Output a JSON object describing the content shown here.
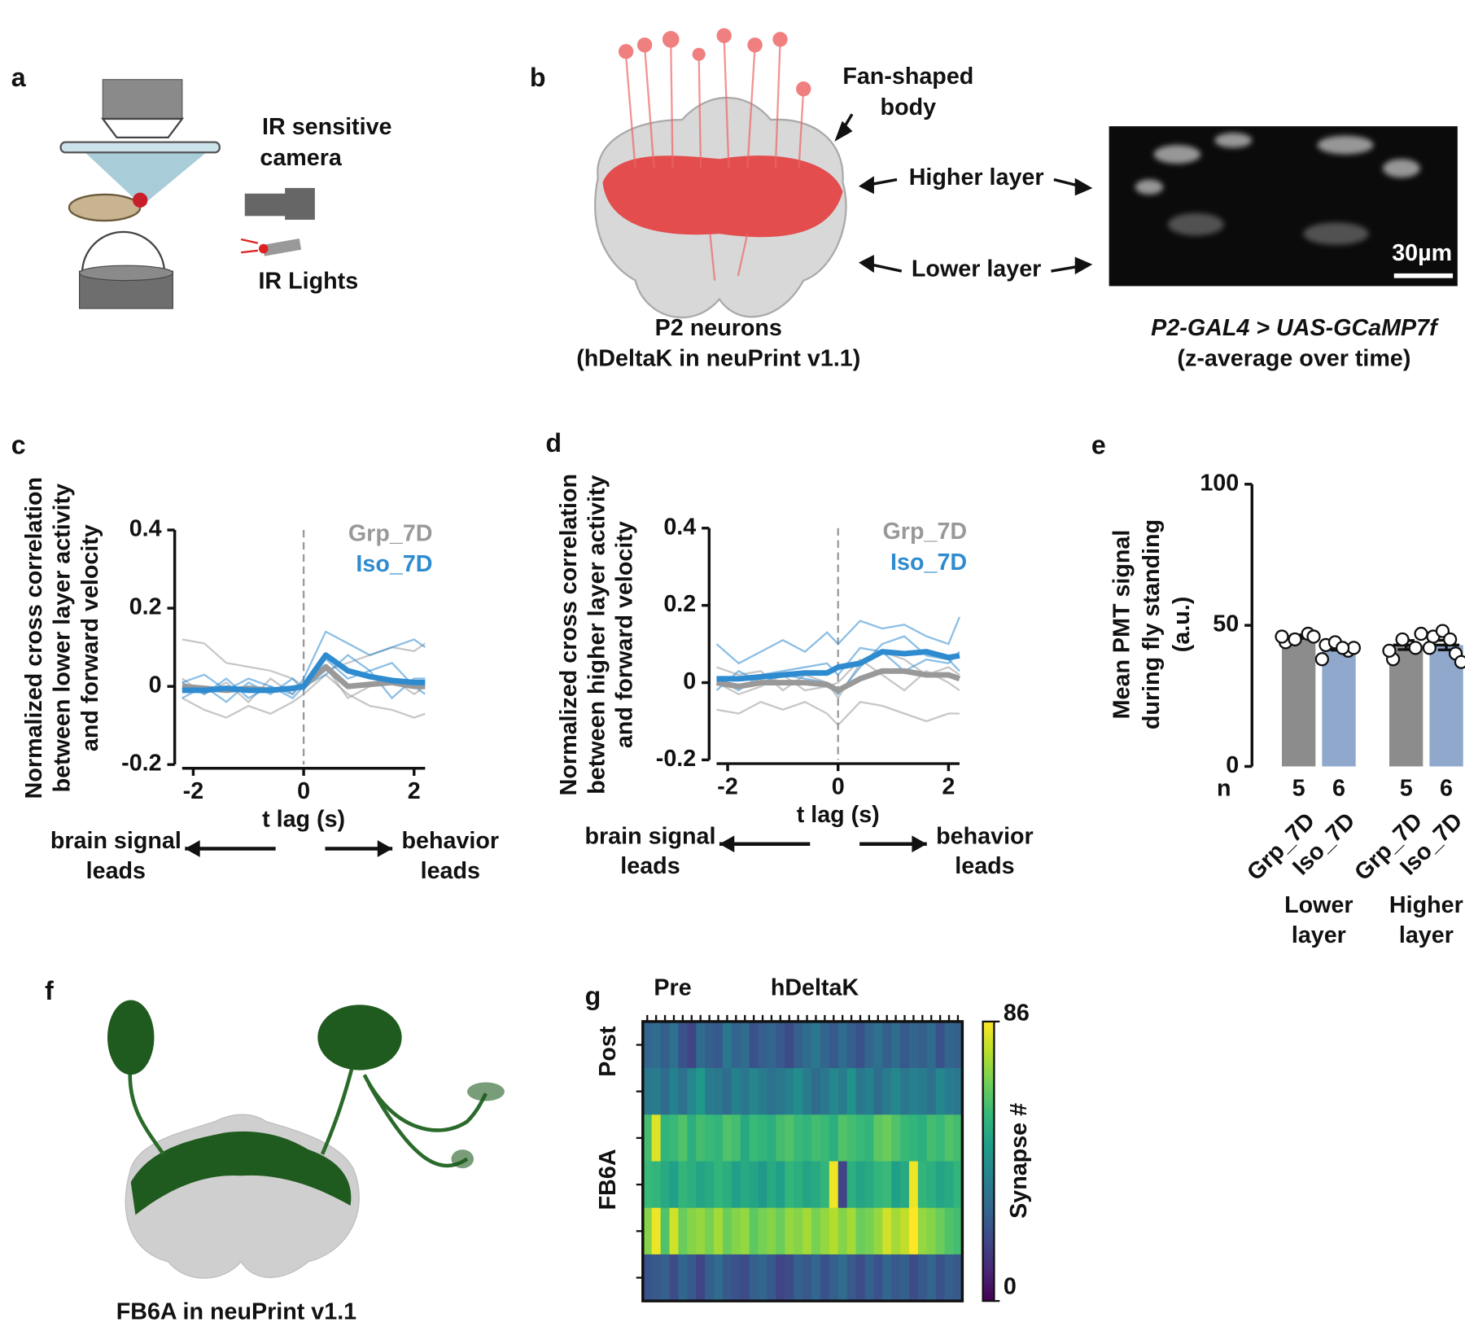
{
  "panel_a": {
    "label": "a",
    "camera": [
      "IR sensitive",
      "camera"
    ],
    "lights": "IR Lights"
  },
  "panel_b": {
    "label": "b",
    "fsb": [
      "Fan-shaped",
      "body"
    ],
    "higher": "Higher layer",
    "lower": "Lower layer",
    "scale": "30µm",
    "left_caption": [
      "P2 neurons",
      "(hDeltaK in neuPrint v1.1)"
    ],
    "right_caption": [
      "P2-GAL4 > UAS-GCaMP7f",
      "(z-average over time)"
    ]
  },
  "panel_f": {
    "label": "f",
    "caption": "FB6A in neuPrint v1.1"
  },
  "chart_data": [
    {
      "type": "line",
      "panel": "c",
      "ylabel": [
        "Normalized cross correlation",
        "between lower layer activity",
        "and forward velocity"
      ],
      "xlabel": "t lag (s)",
      "x": [
        -2.2,
        -1.8,
        -1.4,
        -1.0,
        -0.6,
        -0.2,
        0,
        0.4,
        0.8,
        1.2,
        1.6,
        2.0,
        2.2
      ],
      "xlim": [
        -2.2,
        2.2
      ],
      "xticks": [
        -2,
        0,
        2
      ],
      "ylim": [
        -0.2,
        0.4
      ],
      "yticks": [
        -0.2,
        0,
        0.2,
        0.4
      ],
      "vline": 0,
      "legend": "upper right",
      "annotations": {
        "left": [
          "brain signal",
          "leads"
        ],
        "right": [
          "behavior",
          "leads"
        ]
      },
      "series": [
        {
          "name": "Grp_7D",
          "color": "#999999",
          "values": [
            0,
            -0.005,
            -0.01,
            -0.005,
            -0.01,
            -0.005,
            0,
            0.05,
            0,
            0.005,
            0.01,
            0,
            0
          ],
          "individual": [
            [
              0.12,
              0.11,
              0.06,
              0.05,
              0.04,
              0.02,
              0,
              0.04,
              0.06,
              0.08,
              0.1,
              0.09,
              0.11
            ],
            [
              -0.03,
              -0.06,
              -0.08,
              -0.05,
              -0.07,
              -0.04,
              -0.02,
              0.03,
              -0.02,
              -0.05,
              -0.06,
              -0.08,
              -0.07
            ],
            [
              0.02,
              -0.02,
              0.01,
              -0.04,
              0.02,
              -0.02,
              0.01,
              0.05,
              -0.03,
              0,
              0.02,
              -0.02,
              0
            ]
          ]
        },
        {
          "name": "Iso_7D",
          "color": "#2e8bcf",
          "values": [
            -0.01,
            -0.01,
            -0.005,
            -0.01,
            -0.01,
            -0.005,
            0,
            0.08,
            0.04,
            0.025,
            0.015,
            0.01,
            0.01
          ],
          "individual": [
            [
              0.01,
              -0.02,
              0.02,
              -0.03,
              0,
              -0.02,
              0.02,
              0.14,
              0.11,
              0.08,
              0.1,
              0.12,
              0.1
            ],
            [
              -0.03,
              0,
              -0.04,
              0.01,
              -0.02,
              0.02,
              -0.01,
              0.07,
              0.02,
              0.04,
              -0.03,
              0.02,
              0.02
            ],
            [
              0.01,
              0.03,
              -0.01,
              0.02,
              0,
              -0.03,
              0,
              0.03,
              0.08,
              0.04,
              0.06,
              0,
              -0.02
            ]
          ]
        }
      ]
    },
    {
      "type": "line",
      "panel": "d",
      "ylabel": [
        "Normalized cross correlation",
        "between higher layer activity",
        "and forward velocity"
      ],
      "xlabel": "t lag (s)",
      "x": [
        -2.2,
        -1.8,
        -1.4,
        -1.0,
        -0.6,
        -0.2,
        0,
        0.4,
        0.8,
        1.2,
        1.6,
        2.0,
        2.2
      ],
      "xlim": [
        -2.2,
        2.2
      ],
      "xticks": [
        -2,
        0,
        2
      ],
      "ylim": [
        -0.2,
        0.4
      ],
      "yticks": [
        -0.2,
        0,
        0.2,
        0.4
      ],
      "vline": 0,
      "legend": "upper right",
      "annotations": {
        "left": [
          "brain signal",
          "leads"
        ],
        "right": [
          "behavior",
          "leads"
        ]
      },
      "series": [
        {
          "name": "Grp_7D",
          "color": "#999999",
          "values": [
            0,
            -0.01,
            0,
            0,
            0,
            -0.005,
            -0.02,
            0.01,
            0.03,
            0.03,
            0.02,
            0.02,
            0.01
          ],
          "individual": [
            [
              -0.07,
              -0.08,
              -0.05,
              -0.07,
              -0.05,
              -0.08,
              -0.11,
              -0.05,
              -0.06,
              -0.08,
              -0.1,
              -0.08,
              -0.08
            ],
            [
              0.04,
              0.02,
              0.03,
              -0.02,
              0.02,
              0,
              -0.04,
              0.05,
              0.08,
              0.06,
              0.02,
              0.04,
              0.02
            ],
            [
              0,
              -0.03,
              -0.01,
              0.02,
              -0.02,
              -0.01,
              0,
              0.06,
              0.02,
              -0.02,
              0.03,
              0,
              -0.02
            ]
          ]
        },
        {
          "name": "Iso_7D",
          "color": "#2e8bcf",
          "values": [
            0.01,
            0.01,
            0.015,
            0.02,
            0.025,
            0.025,
            0.04,
            0.05,
            0.08,
            0.075,
            0.08,
            0.065,
            0.07
          ],
          "individual": [
            [
              0.1,
              0.05,
              0.08,
              0.11,
              0.08,
              0.13,
              0.1,
              0.16,
              0.14,
              0.15,
              0.12,
              0.1,
              0.17
            ],
            [
              0.01,
              -0.02,
              0.02,
              0.03,
              0.04,
              0.05,
              0.02,
              0.09,
              0.08,
              0.03,
              0.06,
              0.05,
              0.08
            ],
            [
              -0.02,
              0.03,
              0,
              0.02,
              0.01,
              0,
              -0.03,
              0.04,
              0.1,
              0.12,
              0.07,
              0.06,
              0.03
            ]
          ]
        }
      ]
    },
    {
      "type": "bar",
      "panel": "e",
      "ylabel": [
        "Mean PMT signal",
        "during fly standing",
        "(a.u.)"
      ],
      "ylim": [
        0,
        100
      ],
      "yticks": [
        0,
        50,
        100
      ],
      "categories": [
        "Grp_7D",
        "Iso_7D",
        "Grp_7D",
        "Iso_7D"
      ],
      "colors": [
        "#8c8c8c",
        "#8fa8cc",
        "#8c8c8c",
        "#8fa8cc"
      ],
      "values": [
        46,
        42,
        43,
        43
      ],
      "errors": [
        0.6,
        0.8,
        1.6,
        1.7
      ],
      "points": [
        [
          44,
          47,
          45,
          46,
          46
        ],
        [
          43,
          41,
          44,
          42,
          38,
          42
        ],
        [
          38,
          42,
          45,
          47,
          41
        ],
        [
          46,
          40,
          48,
          37,
          42,
          45
        ]
      ],
      "n_label": "n",
      "n": [
        5,
        6,
        5,
        6
      ],
      "groups": [
        [
          "Lower",
          "layer"
        ],
        [
          "Higher",
          "layer"
        ]
      ]
    },
    {
      "type": "heatmap",
      "panel": "g",
      "xlabel": [
        "Pre",
        "hDeltaK"
      ],
      "ylabel": [
        "Post",
        "FB6A"
      ],
      "colormap": "viridis",
      "clim": [
        0,
        86
      ],
      "colorbar_ticks": [
        0,
        86
      ],
      "colorbar_label": "Synapse #",
      "values": [
        [
          28,
          30,
          26,
          32,
          22,
          18,
          30,
          26,
          24,
          34,
          28,
          30,
          22,
          26,
          28,
          24,
          20,
          26,
          30,
          34,
          28,
          24,
          30,
          26,
          22,
          28,
          32,
          26,
          30,
          24,
          28,
          26,
          30,
          22,
          28,
          26
        ],
        [
          34,
          36,
          30,
          38,
          32,
          40,
          46,
          36,
          34,
          30,
          38,
          34,
          40,
          36,
          32,
          34,
          38,
          42,
          36,
          30,
          34,
          40,
          36,
          44,
          34,
          38,
          30,
          36,
          40,
          34,
          38,
          36,
          32,
          40,
          36,
          34
        ],
        [
          60,
          82,
          56,
          58,
          62,
          54,
          60,
          58,
          56,
          62,
          60,
          52,
          58,
          56,
          54,
          60,
          62,
          58,
          56,
          60,
          58,
          54,
          62,
          60,
          58,
          56,
          64,
          66,
          62,
          58,
          56,
          54,
          60,
          58,
          62,
          60
        ],
        [
          58,
          56,
          52,
          48,
          56,
          54,
          50,
          52,
          56,
          54,
          48,
          52,
          50,
          46,
          52,
          48,
          56,
          54,
          50,
          52,
          56,
          84,
          18,
          54,
          50,
          52,
          56,
          58,
          48,
          52,
          84,
          56,
          54,
          50,
          52,
          56
        ],
        [
          70,
          84,
          62,
          80,
          66,
          70,
          72,
          68,
          74,
          66,
          70,
          72,
          64,
          68,
          70,
          66,
          72,
          70,
          74,
          68,
          72,
          76,
          70,
          74,
          66,
          68,
          72,
          80,
          74,
          78,
          86,
          72,
          70,
          66,
          62,
          60
        ],
        [
          22,
          24,
          26,
          20,
          28,
          24,
          18,
          26,
          30,
          24,
          22,
          20,
          26,
          28,
          24,
          18,
          20,
          26,
          24,
          28,
          22,
          26,
          30,
          24,
          20,
          26,
          22,
          28,
          24,
          26,
          20,
          24,
          28,
          22,
          26,
          24
        ]
      ]
    }
  ]
}
